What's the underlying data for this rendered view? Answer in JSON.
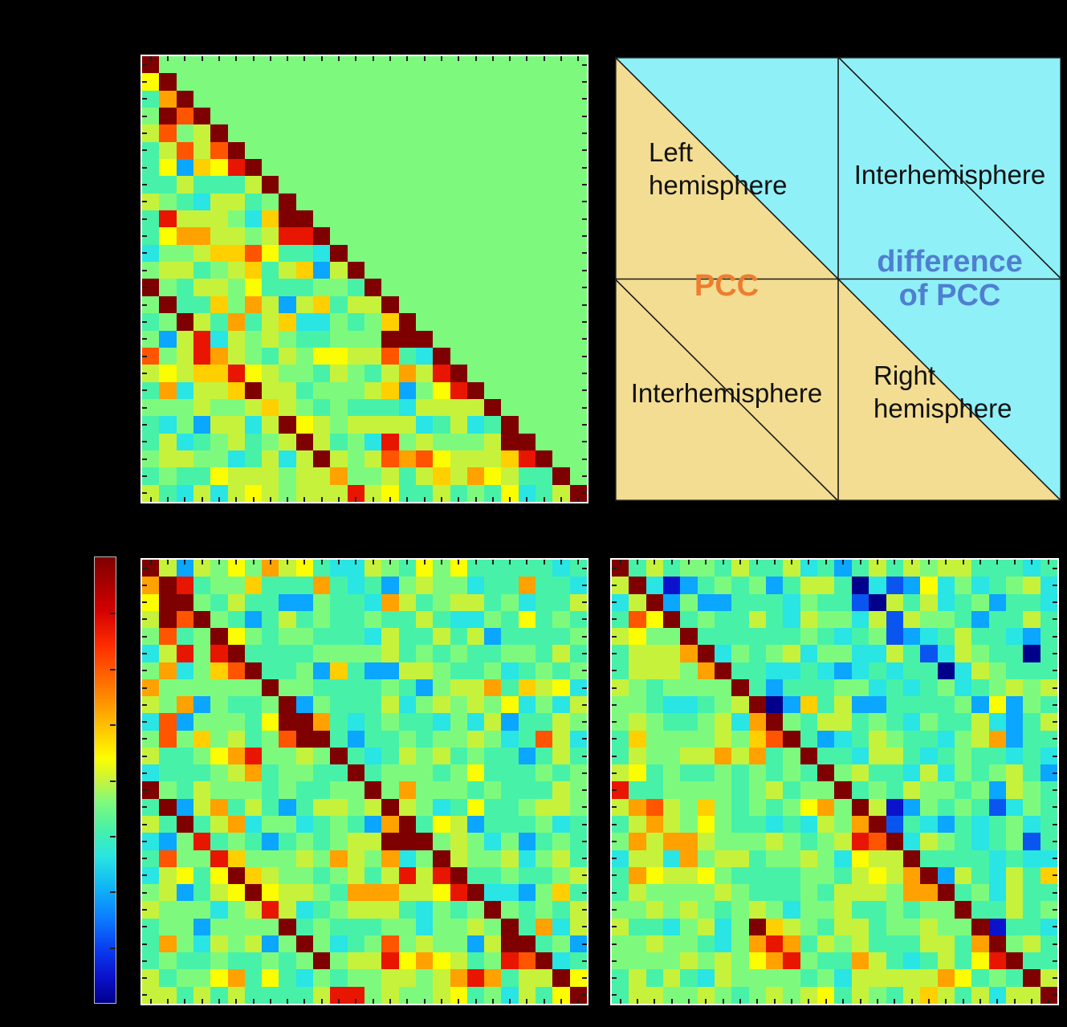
{
  "figure": {
    "background": "#000000",
    "visible_text_note": "No axis tick labels or titles are visible; only the quadrant diagram contains text."
  },
  "diagram": {
    "tan_color": "#f3dd92",
    "cyan_color": "#90f0f8",
    "line_color": "#1a1a1a",
    "left_hemisphere_line1": "Left",
    "left_hemisphere_line2": "hemisphere",
    "interhemisphere_top": "Interhemisphere",
    "interhemisphere_bottom": "Interhemisphere",
    "right_hemisphere_line1": "Right",
    "right_hemisphere_line2": "hemisphere",
    "pcc_label": "PCC",
    "pcc_color": "#ed7d31",
    "diff_label_line1": "difference",
    "diff_label_line2": "of PCC",
    "diff_color": "#4f7fd0"
  },
  "chart_data": [
    {
      "name": "pcc-lower-triangular-matrix",
      "type": "heatmap",
      "position": "top-left",
      "size": 26,
      "grid": false,
      "tick_labels_visible": false,
      "note": "Lower triangle = PCC values, diagonal dark red, upper triangle uniform zero-green",
      "rows": [
        "DGGGGGGGGGGGGGGGGGGGGGGGGG",
        "YDGGGGGGGGGGGGGGGGGGGGGGGG",
        "ToDGGGGGGGGGGGGGGGGGGGGGGG",
        "GDODGGGGGGGGGGGGGGGGGGGGGG",
        "yOGyDGGGGGGGGGGGGGGGGGGGGG",
        "TyOyODGGGGGGGGGGGGGGGGGGGG",
        "TYBAYRDGGGGGGGGGGGGGGGGGGG",
        "TTyTTTyDGGGGGGGGGGGGGGGGGG",
        "yGTCyyTGDGGGGGGGGGGGGGGGGG",
        "TRyyyGCADDGGGGGGGGGGGGGGGG",
        "TYooyyGyRRDGGGGGGGGGGGGGGG",
        "CGGyAAOYTTCDGGGGGGGGGGGGGG",
        "GyyTGyATyAByDGGGGGGGGGGGGG",
        "DGTyyGYTTTGGTDGGGGGGGGGGGG",
        "GDTTAGoyByATyyDGGGGGGGGGGG",
        "TGDyToTyACCGTGADGGGGGGGGGG",
        "GByRCyGyGTTGGGDDDGGGGGGGGG",
        "OGyRoyGTyGYYyyOTCDGGGGGGGG",
        "yYyAARYyGGTyGTyoyRDGGGGGGG",
        "ToCyyADyyTGGGyABGYRDGGGGGG",
        "GGGyGGyAyGTGTTTCyyyyDGGGGG",
        "TCGByyCyDYyGyyyyCTyCTDGGGG",
        "TyCTGyTGyDyTGCRGyGGGyDDGGG",
        "GyyGGCTyCyDyGyOoOYyyyARDGG",
        "TGTTYyyyGyyoGGyTyAyoYyTTDG",
        "yTCyCyYyGyyyRyYTTyTGTYCTyD"
      ]
    },
    {
      "name": "pcc-full-matrix-bottom-left",
      "type": "heatmap",
      "position": "bottom-left",
      "size": 26,
      "grid": false,
      "tick_labels_visible": false,
      "note": "Full symmetric-style PCC matrix; dark red main diagonal plus homotopic sub-diagonal offset by 13",
      "rows": [
        "DyByGYGoyYTCCyGTYGYTTTTTCT",
        "oDRTGGATTToTCTBGyGGCTToTTC",
        "YDDGTyTTBBGTTCoyTGyyTGCTTy",
        "yDODGTBTyTGTTGTTyTCCGTYTGT",
        "GOTGDYGTGGTTTCyTTyTyBTTTTG",
        "CyRGRDTTTTGGGGyTGTGTTGGTyT",
        "GoCGAODTTGBATBByyGTTGCTGTG",
        "oGGGGGGDGGTTTTGTBGyyoTAyYC",
        "yGoBGTTGDBGTTTyCGyGyGYCGCy",
        "COBGGGTYDDoTCTGTTCGCyBTTyG",
        "GOGAGyTGODDTBTTGTGGyGCTOyC",
        "yTTGYoRGGyGDTCTyGyTGTTBTyT",
        "CTTTGyoTGGTTDTGGGTGYTTTGTG",
        "DGTyGGGTGTTGGDGoGGGTGTTTyG",
        "TDByoTyTBTyyGyDyGCTYTTGyyG",
        "yTDTyoCGGCTGTBoDTYyBTTTGCT",
        "CBGRTGTBTGTGyyDDDGyGCGBTGT",
        "TOGGRAGGGyGoyGoCGDyGGyCGyT",
        "CyYTYDAyGGTGyTyRyRDTTGTTGy",
        "GyBTyYDYyyGToooyyYRDCCBGAT",
        "yGGGCGyRyCTGyyyTCGTGDGTGTy",
        "TGGBGGGGDTGTTTGGCGGyGDToCy",
        "ToGCyGyBGDGCTGOGyGGByDDTGB",
        "TGTTGTTGTGDGyyRYoYyTGRODCT",
        "yTGGYoTYTCGTGGyyGyoRoTyyDY",
        "yyTyTyTTTTyRRGyGGyYTGCyTYD"
      ]
    },
    {
      "name": "pcc-full-matrix-bottom-right",
      "type": "heatmap",
      "position": "bottom-right",
      "size": 26,
      "grid": false,
      "tick_labels_visible": false,
      "note": "Second full matrix; cooler overall with navy outliers and a warm cluster near rows 22-24 cols 9-11",
      "rows": [
        "DTyTGGTyTTyCTBTyTyGyyTTTCT",
        "yDCNBTGTGBTyyTnCbBYCGCTGyC",
        "CyDBGBBTTTCGTTbnyTyCTGBTTC",
        "TOYDTGTTyTCyGGCybyGGTBTTyT",
        "yYGGDTTTTTTGTCTGbBCTyTTCBT",
        "TyyyoDCGTGyCGGCCyTbCyGTTnT",
        "TyyyGoDTTCCTCBCTCTTnCyGTTT",
        "yGTGGGGDTBTTTGGCTCTGCTGyGy",
        "GGTCCTGyDnBATyBBTTTTGBYBGT",
        "GyGTTGyCoDGTyyTGTCGTTyCBTy",
        "TAGGGGyGAODTBCTyGTTCGyoBTT",
        "TyGGyyoyoTGDTTCyyTCTGTTCTC",
        "yYTGTTGTGTGTDGyTTCyCGTGyTB",
        "RTTGGGGTGyTGGDTGTyGGTGByGT",
        "yoOyGAGTGTGYoGDyNBGTGTbCGT",
        "TyoyGYGTTCTCyGoDbTCBTCTGCT",
        "GoyooyGGGyGTGyRODCyGTCTGbT",
        "CyyCoGyyTGGyGCYyyDTTTTCTCC",
        "ToYyyYGTTTTGGTyYyoDByTCyTA",
        "TyGGGGyGTTTGTyyyGooDTGCyTT",
        "GGyGyGTGyGCGGyTTGTGGDTTyTG",
        "yTTCGyCGDAyGTyyTGGyGGDNTTC",
        "GGyGGTCGoRoTyGyTTTyyToDGyT",
        "GGGGyGyGYoRGTToyTCTyTYRDTT",
        "TyTyTCyGGGGTGCyyyyyoYTGTDy",
        "TyyGGyGTGyGyYTyGTyAyTyCyyD"
      ]
    },
    {
      "name": "colorbar",
      "type": "colorbar",
      "orientation": "vertical",
      "colormap": "jet",
      "tick_labels_visible": false,
      "stops": [
        {
          "pos": 0,
          "color": "#7f0000"
        },
        {
          "pos": 6,
          "color": "#a80000"
        },
        {
          "pos": 12,
          "color": "#d40000"
        },
        {
          "pos": 20,
          "color": "#ff2e00"
        },
        {
          "pos": 28,
          "color": "#ff6e00"
        },
        {
          "pos": 34,
          "color": "#ffa000"
        },
        {
          "pos": 40,
          "color": "#ffd200"
        },
        {
          "pos": 45,
          "color": "#fdfd00"
        },
        {
          "pos": 50,
          "color": "#c8f43c"
        },
        {
          "pos": 55,
          "color": "#7dfa7d"
        },
        {
          "pos": 61,
          "color": "#48f1a8"
        },
        {
          "pos": 67,
          "color": "#2ae5e2"
        },
        {
          "pos": 74,
          "color": "#0fb6f5"
        },
        {
          "pos": 81,
          "color": "#0b7cff"
        },
        {
          "pos": 88,
          "color": "#0a3cf0"
        },
        {
          "pos": 94,
          "color": "#0b12cc"
        },
        {
          "pos": 100,
          "color": "#00008b"
        }
      ]
    }
  ],
  "palette": {
    "D": "#7f0000",
    "R": "#e81500",
    "O": "#ff5500",
    "o": "#ffa200",
    "A": "#ffcf00",
    "Y": "#fbfd00",
    "y": "#c6f23b",
    "G": "#7dfa7d",
    "T": "#48f1a8",
    "C": "#29e5e3",
    "B": "#0ba6ff",
    "b": "#0a55f0",
    "N": "#0b12cc",
    "n": "#00008b"
  }
}
